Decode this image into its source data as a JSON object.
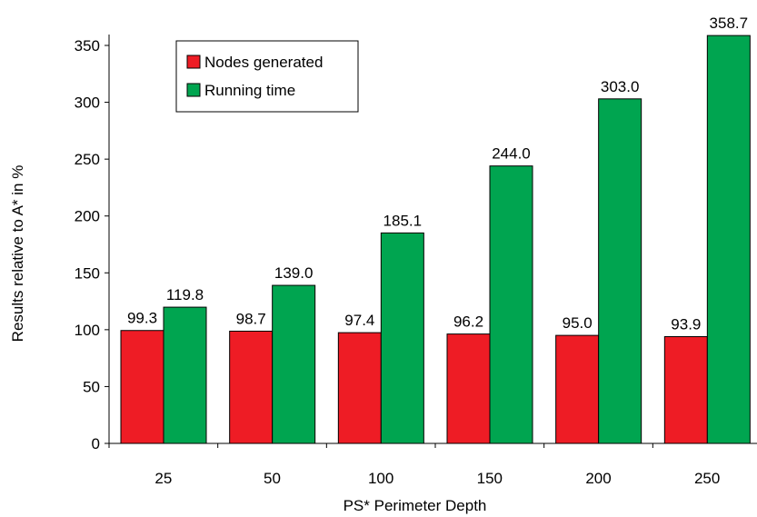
{
  "chart_data": {
    "type": "bar",
    "title": "",
    "xlabel": "PS* Perimeter Depth",
    "ylabel": "Results relative to A* in %",
    "categories": [
      "25",
      "50",
      "100",
      "150",
      "200",
      "250"
    ],
    "series": [
      {
        "name": "Nodes generated",
        "color": "#ee1c25",
        "values": [
          99.3,
          98.7,
          97.4,
          96.2,
          95.0,
          93.9
        ]
      },
      {
        "name": "Running time",
        "color": "#00a550",
        "values": [
          119.8,
          139.0,
          185.1,
          244.0,
          303.0,
          358.7
        ]
      }
    ],
    "yticks": [
      0,
      50,
      100,
      150,
      200,
      250,
      300,
      350
    ],
    "ylim": [
      0,
      350
    ],
    "grid": false,
    "legend_position": "top-left"
  }
}
